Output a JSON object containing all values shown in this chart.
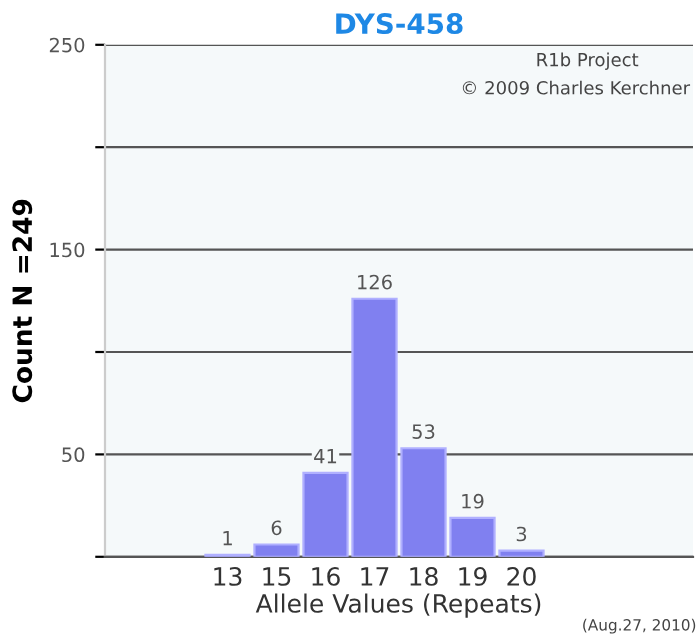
{
  "chart_data": {
    "type": "bar",
    "title": "DYS-458",
    "xlabel": "Allele Values (Repeats)",
    "ylabel": "Count N =249",
    "categories": [
      null,
      null,
      "13",
      "15",
      "16",
      "17",
      "18",
      "19",
      "20",
      null,
      null,
      null
    ],
    "values": [
      null,
      null,
      1,
      6,
      41,
      126,
      53,
      19,
      3,
      null,
      null,
      null
    ],
    "color": "#8080f0",
    "data_labels": true,
    "ylim": [
      0,
      250
    ],
    "yticks": [
      {
        "value": 0,
        "label": null
      },
      50,
      {
        "value": 100,
        "label": null
      },
      150,
      {
        "value": 200,
        "label": null
      },
      250
    ],
    "grid": "y",
    "annotations": [
      "R1b Project",
      "© 2009 Charles Kerchner",
      "(Aug.27, 2010)"
    ]
  }
}
